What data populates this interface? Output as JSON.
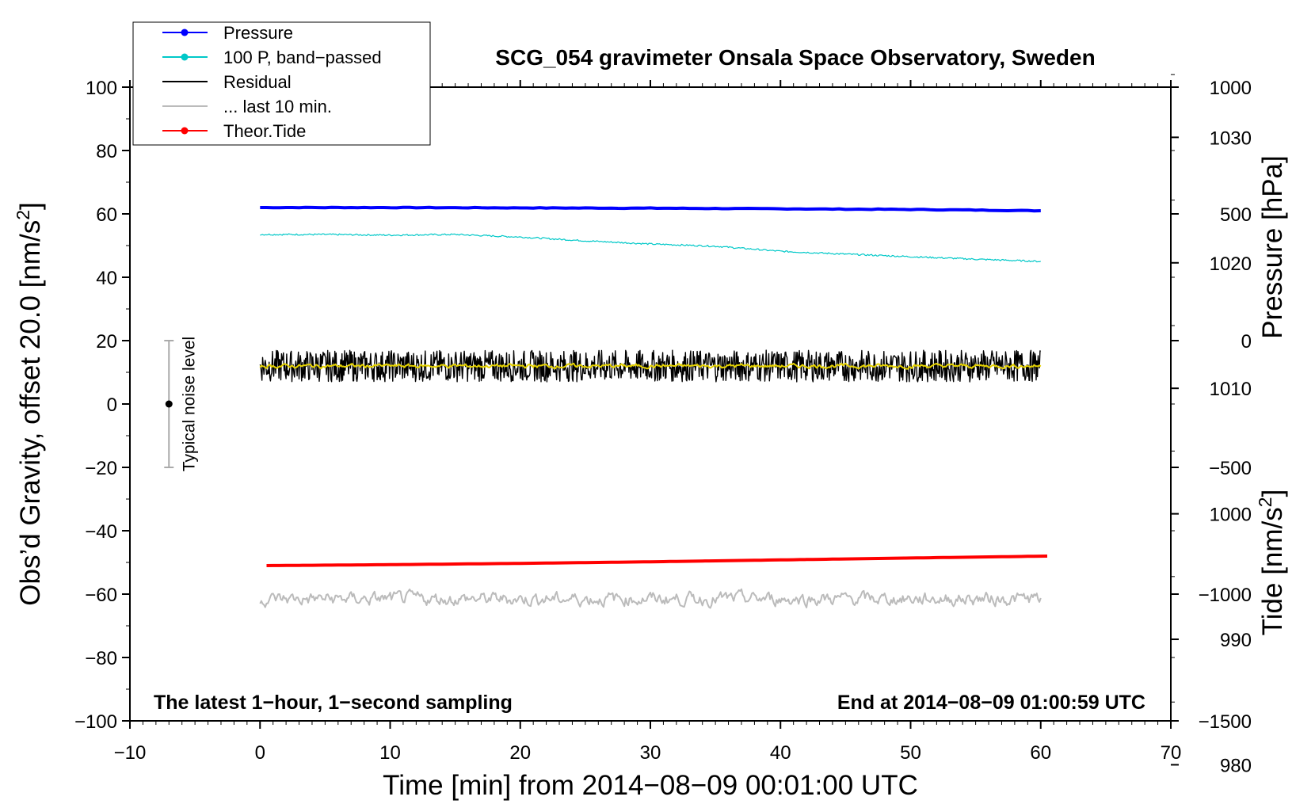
{
  "chart_data": {
    "type": "line",
    "title": "SCG_054 gravimeter Onsala Space Observatory, Sweden",
    "xlabel": "Time [min] from 2014−08−09 00:01:00 UTC",
    "ylabel_left": "Obs’d Gravity, offset 20.0 [nm/s",
    "ylabel_left_sup": "2",
    "ylabel_left_end": "]",
    "ylabel_pressure": "Pressure [hPa]",
    "ylabel_tide": "Tide [nm/s",
    "ylabel_tide_sup": "2",
    "ylabel_tide_end": "]",
    "xlim": [
      -10,
      70
    ],
    "ylim": [
      -100,
      100
    ],
    "pressure_lim": [
      983.5,
      1034
    ],
    "tide_lim": [
      -1500,
      1000
    ],
    "x_ticks": [
      "−10",
      "0",
      "10",
      "20",
      "30",
      "40",
      "50",
      "60",
      "70"
    ],
    "x_tick_values": [
      -10,
      0,
      10,
      20,
      30,
      40,
      50,
      60,
      70
    ],
    "y_ticks": [
      "100",
      "80",
      "60",
      "40",
      "20",
      "0",
      "−20",
      "−40",
      "−60",
      "−80",
      "−100"
    ],
    "y_tick_values": [
      100,
      80,
      60,
      40,
      20,
      0,
      -20,
      -40,
      -60,
      -80,
      -100
    ],
    "pressure_ticks": [
      "1030",
      "1020",
      "1010",
      "1000",
      "990",
      "980"
    ],
    "pressure_tick_values": [
      1030,
      1020,
      1010,
      1000,
      990,
      980
    ],
    "tide_ticks": [
      "1000",
      "500",
      "0",
      "−500",
      "−1000",
      "−1500"
    ],
    "tide_tick_values": [
      1000,
      500,
      0,
      -500,
      -1000,
      -1500
    ],
    "legend": [
      {
        "label": "Pressure",
        "color": "#0000ff",
        "marker": true
      },
      {
        "label": "100 P, band−passed",
        "color": "#00c8c8",
        "marker": true
      },
      {
        "label": "Residual",
        "color": "#000000",
        "marker": false
      },
      {
        "label": "... last 10 min.",
        "color": "#bbbbbb",
        "marker": false
      },
      {
        "label": "Theor.Tide",
        "color": "#ff0000",
        "marker": true
      }
    ],
    "noise_label": "Typical noise level",
    "noise_bar": {
      "x": -7,
      "center": 0,
      "low": -20,
      "high": 20
    },
    "bottom_left_note": "The latest 1−hour, 1−second sampling",
    "bottom_right_note": "End at 2014−08−09 01:00:59 UTC",
    "series": [
      {
        "name": "Pressure",
        "color": "#0000ff",
        "x": [
          0,
          10,
          20,
          30,
          40,
          50,
          55,
          60
        ],
        "y": [
          62,
          62,
          61.9,
          61.8,
          61.6,
          61.4,
          61.2,
          61.0
        ]
      },
      {
        "name": "100 P, band−passed",
        "color": "#00c8c8",
        "x": [
          0,
          5,
          10,
          15,
          20,
          25,
          30,
          35,
          40,
          45,
          50,
          55,
          60
        ],
        "y": [
          53.5,
          53.5,
          53.3,
          53.5,
          52.7,
          51.5,
          50.5,
          49.8,
          48.2,
          47.3,
          46.5,
          45.7,
          45
        ]
      },
      {
        "name": "Residual",
        "color": "#000000",
        "x": [
          0,
          60
        ],
        "y": [
          12,
          12
        ],
        "noise_amplitude": 5
      },
      {
        "name": "Residual smoothed",
        "color": "#e6d300",
        "x": [
          0,
          60
        ],
        "y": [
          12,
          12
        ],
        "noise_amplitude": 1.2
      },
      {
        "name": "... last 10 min.",
        "color": "#bbbbbb",
        "x": [
          0,
          60
        ],
        "y": [
          -61.5,
          -61.5
        ],
        "noise_amplitude": 4
      },
      {
        "name": "Theor.Tide",
        "color": "#ff0000",
        "x": [
          0.5,
          10,
          20,
          30,
          40,
          50,
          60.5
        ],
        "y": [
          -51,
          -50.7,
          -50.3,
          -49.8,
          -49.2,
          -48.6,
          -48
        ]
      }
    ]
  }
}
